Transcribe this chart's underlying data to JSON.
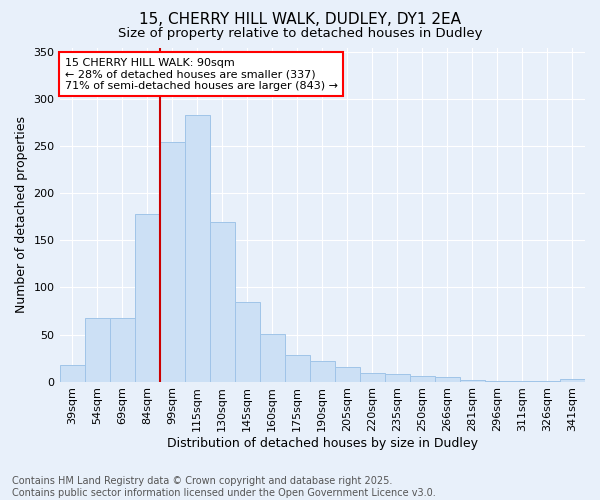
{
  "title": "15, CHERRY HILL WALK, DUDLEY, DY1 2EA",
  "subtitle": "Size of property relative to detached houses in Dudley",
  "xlabel": "Distribution of detached houses by size in Dudley",
  "ylabel": "Number of detached properties",
  "categories": [
    "39sqm",
    "54sqm",
    "69sqm",
    "84sqm",
    "99sqm",
    "115sqm",
    "130sqm",
    "145sqm",
    "160sqm",
    "175sqm",
    "190sqm",
    "205sqm",
    "220sqm",
    "235sqm",
    "250sqm",
    "266sqm",
    "281sqm",
    "296sqm",
    "311sqm",
    "326sqm",
    "341sqm"
  ],
  "values": [
    18,
    68,
    68,
    178,
    255,
    283,
    170,
    85,
    51,
    28,
    22,
    15,
    9,
    8,
    6,
    5,
    2,
    1,
    1,
    1,
    3
  ],
  "bar_color": "#cce0f5",
  "bar_edge_color": "#a0c4e8",
  "background_color": "#e8f0fa",
  "grid_color": "#ffffff",
  "vline_color": "#cc0000",
  "vline_x_index": 3.5,
  "annotation_text_line1": "15 CHERRY HILL WALK: 90sqm",
  "annotation_text_line2": "← 28% of detached houses are smaller (337)",
  "annotation_text_line3": "71% of semi-detached houses are larger (843) →",
  "footer_line1": "Contains HM Land Registry data © Crown copyright and database right 2025.",
  "footer_line2": "Contains public sector information licensed under the Open Government Licence v3.0.",
  "ylim": [
    0,
    355
  ],
  "yticks": [
    0,
    50,
    100,
    150,
    200,
    250,
    300,
    350
  ],
  "title_fontsize": 11,
  "subtitle_fontsize": 9.5,
  "axis_label_fontsize": 9,
  "tick_fontsize": 8,
  "annotation_fontsize": 8,
  "footer_fontsize": 7
}
